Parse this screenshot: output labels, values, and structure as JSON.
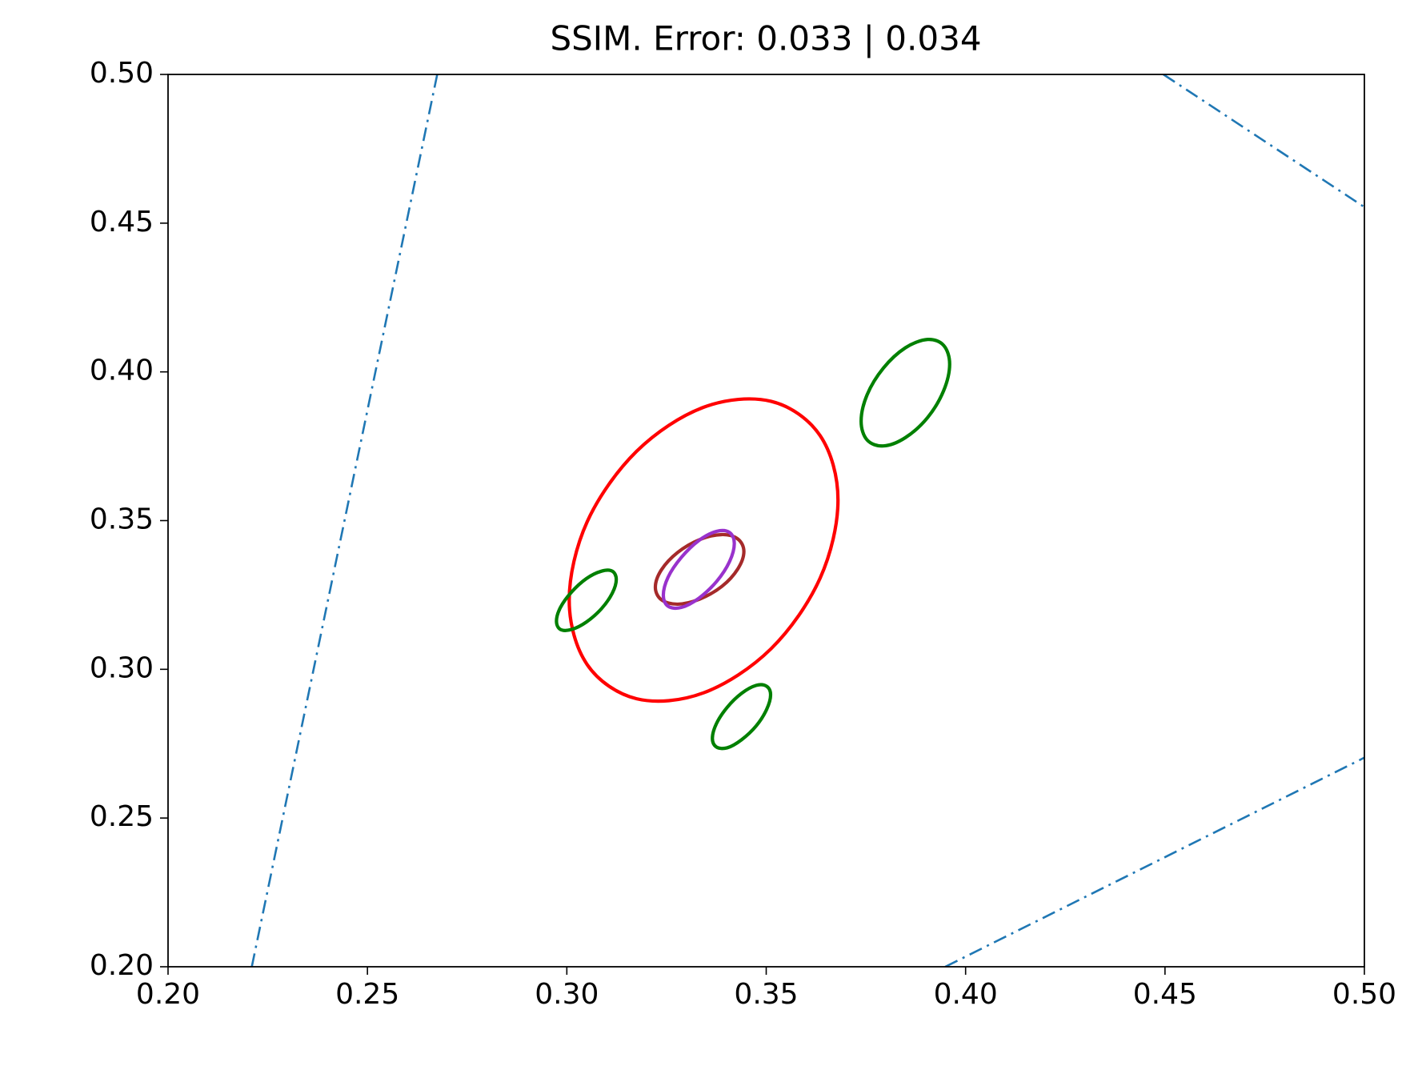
{
  "chart_data": {
    "type": "line",
    "title": "SSIM. Error: 0.033 | 0.034",
    "xlim": [
      0.2,
      0.5
    ],
    "ylim": [
      0.2,
      0.5
    ],
    "xticks": [
      {
        "value": 0.2,
        "label": "0.20"
      },
      {
        "value": 0.25,
        "label": "0.25"
      },
      {
        "value": 0.3,
        "label": "0.30"
      },
      {
        "value": 0.35,
        "label": "0.35"
      },
      {
        "value": 0.4,
        "label": "0.40"
      },
      {
        "value": 0.45,
        "label": "0.45"
      },
      {
        "value": 0.5,
        "label": "0.50"
      }
    ],
    "yticks": [
      {
        "value": 0.2,
        "label": "0.20"
      },
      {
        "value": 0.25,
        "label": "0.25"
      },
      {
        "value": 0.3,
        "label": "0.30"
      },
      {
        "value": 0.35,
        "label": "0.35"
      },
      {
        "value": 0.4,
        "label": "0.40"
      },
      {
        "value": 0.45,
        "label": "0.45"
      },
      {
        "value": 0.5,
        "label": "0.50"
      }
    ],
    "series": [
      {
        "color": "#1f77b4",
        "style": "dashdot",
        "closed": false,
        "x": [
          0.221,
          0.2675
        ],
        "y": [
          0.2,
          0.5
        ]
      },
      {
        "color": "#1f77b4",
        "style": "dashdot",
        "closed": false,
        "x": [
          0.4496,
          0.5
        ],
        "y": [
          0.5,
          0.4554
        ]
      },
      {
        "color": "#1f77b4",
        "style": "dashdot",
        "closed": false,
        "x": [
          0.3949,
          0.5
        ],
        "y": [
          0.2,
          0.2703
        ]
      },
      {
        "color": "#ff0000",
        "style": "solid",
        "closed": true,
        "x": [
          0.368,
          0.3635,
          0.3512,
          0.3343,
          0.3175,
          0.3051,
          0.3006,
          0.3051,
          0.3175,
          0.3343,
          0.3512,
          0.3635
        ],
        "y": [
          0.3569,
          0.3786,
          0.3901,
          0.3881,
          0.3733,
          0.3496,
          0.3233,
          0.3016,
          0.2901,
          0.2921,
          0.3069,
          0.3306
        ]
      },
      {
        "color": "#008000",
        "style": "solid",
        "closed": true,
        "x": [
          0.396,
          0.3945,
          0.3905,
          0.3849,
          0.3794,
          0.3753,
          0.3738,
          0.3753,
          0.3794,
          0.3849,
          0.3905,
          0.3945
        ],
        "y": [
          0.4026,
          0.4089,
          0.4109,
          0.4081,
          0.4013,
          0.3923,
          0.3834,
          0.3771,
          0.3751,
          0.3779,
          0.3847,
          0.3937
        ]
      },
      {
        "color": "#008000",
        "style": "solid",
        "closed": true,
        "x": [
          0.3124,
          0.3114,
          0.3087,
          0.3049,
          0.3012,
          0.2984,
          0.2974,
          0.2984,
          0.3012,
          0.3049,
          0.3087,
          0.3114
        ],
        "y": [
          0.3302,
          0.333,
          0.333,
          0.3305,
          0.326,
          0.3208,
          0.3162,
          0.3134,
          0.3134,
          0.3159,
          0.3204,
          0.3256
        ]
      },
      {
        "color": "#008000",
        "style": "solid",
        "closed": true,
        "x": [
          0.3511,
          0.3501,
          0.3475,
          0.3438,
          0.3402,
          0.3375,
          0.3365,
          0.3375,
          0.3402,
          0.3438,
          0.3475,
          0.3501
        ],
        "y": [
          0.2914,
          0.2943,
          0.2946,
          0.2919,
          0.2872,
          0.2817,
          0.2768,
          0.2739,
          0.2736,
          0.2763,
          0.281,
          0.2865
        ]
      },
      {
        "color": "#a52a2a",
        "style": "solid",
        "closed": true,
        "x": [
          0.3444,
          0.3429,
          0.3389,
          0.3333,
          0.3278,
          0.3237,
          0.3222,
          0.3237,
          0.3278,
          0.3333,
          0.3389,
          0.3429
        ],
        "y": [
          0.3396,
          0.3438,
          0.3453,
          0.3436,
          0.3393,
          0.3334,
          0.3276,
          0.3234,
          0.3219,
          0.3236,
          0.3279,
          0.3338
        ]
      },
      {
        "color": "#9932cc",
        "style": "solid",
        "closed": true,
        "x": [
          0.342,
          0.3408,
          0.3376,
          0.3331,
          0.3287,
          0.3254,
          0.3242,
          0.3254,
          0.3287,
          0.3331,
          0.3376,
          0.3408
        ],
        "y": [
          0.3423,
          0.346,
          0.3464,
          0.3433,
          0.3376,
          0.331,
          0.3249,
          0.3212,
          0.3208,
          0.3239,
          0.3296,
          0.3362
        ]
      }
    ]
  }
}
